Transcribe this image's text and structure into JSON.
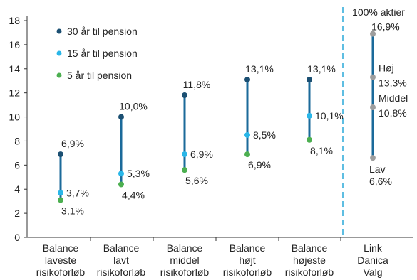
{
  "chart_data": {
    "type": "range-dot",
    "ylim": [
      0,
      18
    ],
    "yticks": [
      0,
      2,
      4,
      6,
      8,
      10,
      12,
      14,
      16,
      18
    ],
    "ytick_labels": [
      "0",
      "2",
      "4",
      "6",
      "8",
      "10",
      "12",
      "14",
      "16",
      "18"
    ],
    "categories": [
      [
        "Balance",
        "laveste",
        "risikoforløb"
      ],
      [
        "Balance",
        "lavt",
        "risikoforløb"
      ],
      [
        "Balance",
        "middel",
        "risikoforløb"
      ],
      [
        "Balance",
        "højt",
        "risikoforløb"
      ],
      [
        "Balance",
        "højeste",
        "risikoforløb"
      ],
      [
        "Link",
        "Danica",
        "Valg"
      ]
    ],
    "series": [
      {
        "name": "30 år til pension",
        "color": "#1b4f72",
        "values": [
          6.9,
          10.0,
          11.8,
          13.1,
          13.1,
          null
        ]
      },
      {
        "name": "15 år til pension",
        "color": "#29b6e8",
        "values": [
          3.7,
          5.3,
          6.9,
          8.5,
          10.1,
          null
        ]
      },
      {
        "name": "5 år til pension",
        "color": "#4caf50",
        "values": [
          3.1,
          4.4,
          5.6,
          6.9,
          8.1,
          null
        ]
      }
    ],
    "value_labels": [
      [
        "6,9%",
        "3,7%",
        "3,1%"
      ],
      [
        "10,0%",
        "5,3%",
        "4,4%"
      ],
      [
        "11,8%",
        "6,9%",
        "5,6%"
      ],
      [
        "13,1%",
        "8,5%",
        "6,9%"
      ],
      [
        "13,1%",
        "10,1%",
        "8,1%"
      ]
    ],
    "link_series": {
      "header": "100% aktier",
      "color": "#9e9e9e",
      "range_color": "#1b6a9a",
      "points": [
        {
          "name": "100% aktier",
          "value": 16.9,
          "label": "16,9%"
        },
        {
          "name": "Høj",
          "value": 13.3,
          "label": "13,3%"
        },
        {
          "name": "Middel",
          "value": 10.8,
          "label": "10,8%"
        },
        {
          "name": "Lav",
          "value": 6.6,
          "label": "6,6%"
        }
      ]
    },
    "range_line_color": "#1b6a9a",
    "legend_position": "top-left",
    "grid": false,
    "separator": "dashed vertical line before last category"
  }
}
